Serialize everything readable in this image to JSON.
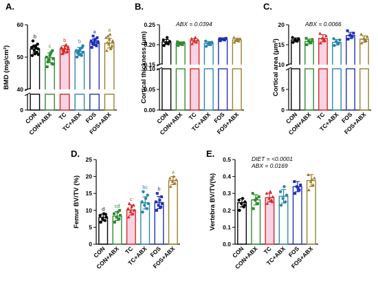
{
  "figure": {
    "groups": [
      "CON",
      "CON+ABX",
      "TC",
      "TC+ABX",
      "FOS",
      "FOS+ABX"
    ]
  },
  "colors": {
    "CON": "#000000",
    "CON+ABX": "#2e8b2e",
    "TC": "#d62828",
    "TC+ABX": "#2a86a8",
    "FOS": "#1f2fb5",
    "FOS+ABX": "#9c7e2c",
    "tc_fill": "#f8d3e3"
  },
  "chart_data": [
    {
      "id": "A",
      "panel_label": "A.",
      "type": "bar",
      "ylabel": "BMD (mg/cm²)",
      "axis_break": true,
      "ylim_lower": [
        0,
        40
      ],
      "ylim_upper": [
        40,
        60
      ],
      "yticks": [
        0,
        40,
        50,
        60
      ],
      "annotation": "",
      "categories": [
        "CON",
        "CON+ABX",
        "TC",
        "TC+ABX",
        "FOS",
        "FOS+ABX"
      ],
      "values": [
        52.5,
        49.8,
        52.5,
        51.7,
        54.6,
        54.3
      ],
      "errors": [
        1.2,
        1.5,
        1.0,
        1.3,
        1.0,
        1.5
      ],
      "letters": [
        "b",
        "c",
        "b",
        "b",
        "a",
        "a"
      ],
      "points": [
        [
          50.5,
          51.5,
          52.0,
          52.5,
          53.0,
          53.5,
          54.0,
          55.0,
          51.0,
          52.8,
          53.3,
          50.8
        ],
        [
          47.0,
          48.0,
          49.0,
          49.5,
          50.0,
          51.0,
          52.0,
          48.5,
          50.5,
          51.5,
          49.2,
          47.8
        ],
        [
          51.0,
          51.5,
          52.0,
          52.5,
          53.0,
          53.5,
          51.8,
          52.2,
          52.8,
          53.8,
          51.2,
          53.2
        ],
        [
          50.0,
          50.5,
          51.0,
          51.5,
          52.0,
          52.5,
          53.0,
          51.2,
          52.2,
          50.8,
          51.8,
          53.5
        ],
        [
          53.0,
          53.5,
          54.0,
          54.5,
          55.0,
          55.5,
          56.0,
          54.2,
          55.2,
          53.8,
          56.5,
          54.8
        ],
        [
          52.0,
          53.0,
          54.0,
          55.0,
          56.0,
          57.0,
          53.5,
          54.5,
          55.5,
          52.5,
          56.5,
          54.8
        ]
      ]
    },
    {
      "id": "B",
      "panel_label": "B.",
      "type": "bar",
      "ylabel": "Cortical thickness (μm)",
      "axis_break": true,
      "ylim_lower": [
        0,
        0.1
      ],
      "ylim_upper": [
        0.15,
        0.25
      ],
      "yticks": [
        0.0,
        0.05,
        0.1,
        0.15,
        0.2,
        0.25
      ],
      "annotation": "ABX = 0.0394",
      "categories": [
        "CON",
        "CON+ABX",
        "TC",
        "TC+ABX",
        "FOS",
        "FOS+ABX"
      ],
      "values": [
        0.207,
        0.203,
        0.21,
        0.203,
        0.214,
        0.212
      ],
      "errors": [
        0.006,
        0.004,
        0.005,
        0.005,
        0.003,
        0.004
      ],
      "letters": [],
      "points": [
        [
          0.198,
          0.202,
          0.205,
          0.208,
          0.212,
          0.218
        ],
        [
          0.198,
          0.2,
          0.203,
          0.205,
          0.207,
          0.204
        ],
        [
          0.202,
          0.206,
          0.21,
          0.212,
          0.215,
          0.218
        ],
        [
          0.196,
          0.2,
          0.203,
          0.206,
          0.209,
          0.205
        ],
        [
          0.21,
          0.212,
          0.214,
          0.216,
          0.215,
          0.213
        ],
        [
          0.206,
          0.209,
          0.212,
          0.215,
          0.218,
          0.214
        ]
      ]
    },
    {
      "id": "C",
      "panel_label": "C.",
      "type": "bar",
      "ylabel": "Cortical area (μm²)",
      "axis_break": true,
      "ylim_lower": [
        0,
        10
      ],
      "ylim_upper": [
        10,
        20
      ],
      "yticks": [
        0,
        5,
        10,
        15,
        20
      ],
      "annotation": "ABX = 0.0066",
      "categories": [
        "CON",
        "CON+ABX",
        "TC",
        "TC+ABX",
        "FOS",
        "FOS+ABX"
      ],
      "values": [
        16.2,
        15.8,
        16.6,
        15.6,
        17.3,
        16.4
      ],
      "errors": [
        0.5,
        0.6,
        0.9,
        0.7,
        0.8,
        0.8
      ],
      "letters": [],
      "points": [
        [
          15.6,
          15.9,
          16.2,
          16.5,
          16.8,
          16.1
        ],
        [
          15.0,
          15.5,
          15.9,
          16.3,
          16.6,
          15.7
        ],
        [
          15.4,
          16.0,
          16.6,
          17.2,
          17.8,
          16.3
        ],
        [
          14.8,
          15.3,
          15.8,
          16.2,
          16.5,
          15.5
        ],
        [
          16.4,
          17.0,
          17.4,
          17.9,
          18.5,
          17.2
        ],
        [
          15.4,
          16.0,
          16.5,
          17.0,
          17.6,
          16.2
        ]
      ]
    },
    {
      "id": "D",
      "panel_label": "D.",
      "type": "bar",
      "ylabel": "Femur BV/TV (%)",
      "axis_break": false,
      "ylim": [
        0,
        25
      ],
      "yticks": [
        0,
        5,
        10,
        15,
        20,
        25
      ],
      "annotation": "",
      "categories": [
        "CON",
        "CON+ABX",
        "TC",
        "TC+ABX",
        "FOS",
        "FOS+ABX"
      ],
      "values": [
        7.9,
        8.3,
        10.1,
        12.2,
        12.3,
        18.8
      ],
      "errors": [
        1.0,
        1.3,
        1.5,
        1.8,
        1.8,
        1.2
      ],
      "letters": [
        "d",
        "cd",
        "c",
        "bc",
        "b",
        "a"
      ],
      "points": [
        [
          6.5,
          7.0,
          7.5,
          8.0,
          8.5,
          9.0,
          8.8
        ],
        [
          6.5,
          7.5,
          8.0,
          8.5,
          9.0,
          9.5,
          10.0
        ],
        [
          8.0,
          9.0,
          9.5,
          10.0,
          10.5,
          11.0,
          11.5,
          12.0
        ],
        [
          9.5,
          10.5,
          11.5,
          12.0,
          12.5,
          13.5,
          14.5,
          15.5
        ],
        [
          10.0,
          11.0,
          11.5,
          12.0,
          12.5,
          13.0,
          14.0,
          15.0
        ],
        [
          17.0,
          18.0,
          18.5,
          19.0,
          19.5,
          20.0
        ]
      ]
    },
    {
      "id": "E",
      "panel_label": "E.",
      "type": "bar",
      "ylabel": "Vertebra BV/TV(%)",
      "axis_break": false,
      "ylim": [
        0,
        0.5
      ],
      "yticks": [
        0.0,
        0.1,
        0.2,
        0.3,
        0.4,
        0.5
      ],
      "annotation": "DIET = <0.0001",
      "annotation2": "ABX = 0.0169",
      "categories": [
        "CON",
        "CON+ABX",
        "TC",
        "TC+ABX",
        "FOS",
        "FOS+ABX"
      ],
      "values": [
        0.245,
        0.262,
        0.275,
        0.283,
        0.34,
        0.376
      ],
      "errors": [
        0.025,
        0.03,
        0.025,
        0.04,
        0.03,
        0.035
      ],
      "letters": [],
      "points": [
        [
          0.2,
          0.22,
          0.24,
          0.25,
          0.26,
          0.27,
          0.23
        ],
        [
          0.21,
          0.24,
          0.26,
          0.28,
          0.3,
          0.27
        ],
        [
          0.24,
          0.26,
          0.27,
          0.28,
          0.3,
          0.31,
          0.25
        ],
        [
          0.23,
          0.25,
          0.27,
          0.29,
          0.31,
          0.34
        ],
        [
          0.3,
          0.32,
          0.34,
          0.35,
          0.37,
          0.33
        ],
        [
          0.32,
          0.35,
          0.37,
          0.39,
          0.41,
          0.38
        ]
      ]
    }
  ]
}
